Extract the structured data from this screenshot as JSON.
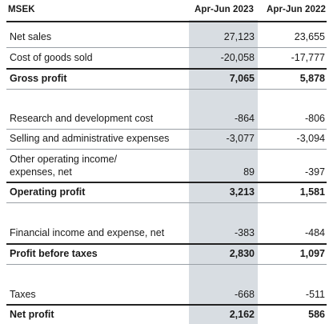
{
  "header": {
    "unit": "MSEK",
    "col1": "Apr-Jun 2023",
    "col2": "Apr-Jun 2022"
  },
  "rows": [
    {
      "label": "Net sales",
      "v1": "27,123",
      "v2": "23,655"
    },
    {
      "label": "Cost of goods sold",
      "v1": "-20,058",
      "v2": "-17,777"
    },
    {
      "label": "Gross profit",
      "v1": "7,065",
      "v2": "5,878"
    },
    {
      "label": "Research and development cost",
      "v1": "-864",
      "v2": "-806"
    },
    {
      "label": "Selling and administrative expenses",
      "v1": "-3,077",
      "v2": "-3,094"
    },
    {
      "label_line1": "Other operating income/",
      "label_line2": "expenses, net",
      "v1": "89",
      "v2": "-397"
    },
    {
      "label": "Operating profit",
      "v1": "3,213",
      "v2": "1,581"
    },
    {
      "label": "Financial income and expense, net",
      "v1": "-383",
      "v2": "-484"
    },
    {
      "label": "Profit before taxes",
      "v1": "2,830",
      "v2": "1,097"
    },
    {
      "label": "Taxes",
      "v1": "-668",
      "v2": "-511"
    },
    {
      "label": "Net profit",
      "v1": "2,162",
      "v2": "586"
    }
  ]
}
